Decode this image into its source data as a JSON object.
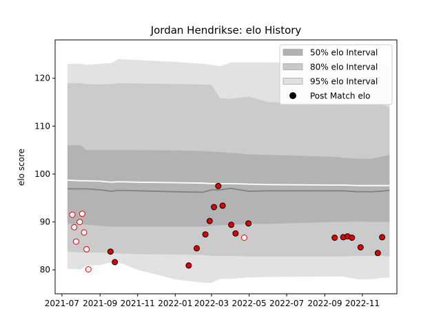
{
  "chart_data": {
    "type": "area",
    "title": "Jordan Hendrikse: elo History",
    "xlabel": "",
    "ylabel": "elo score",
    "xlim": [
      "2021-06-20",
      "2022-12-27"
    ],
    "ylim": [
      75,
      128
    ],
    "x_ticks": [
      "2021-07",
      "2021-09",
      "2021-11",
      "2022-01",
      "2022-03",
      "2022-05",
      "2022-07",
      "2022-09",
      "2022-11"
    ],
    "y_ticks": [
      80,
      90,
      100,
      110,
      120
    ],
    "grid": false,
    "legend_position": "top-right",
    "legend": [
      {
        "label": "50% elo Interval",
        "kind": "band",
        "color": "#b0b0b0"
      },
      {
        "label": "80% elo Interval",
        "kind": "band",
        "color": "#c8c8c8"
      },
      {
        "label": "95% elo Interval",
        "kind": "band",
        "color": "#e0e0e0"
      },
      {
        "label": "Post Match elo",
        "kind": "marker",
        "color": "#000000"
      }
    ],
    "colors": {
      "band_50": "#b3b3b3",
      "band_80": "#cbcbcb",
      "band_95": "#e2e2e2",
      "mean_line": "#808080",
      "expected_line": "#ffffff",
      "marker_fill": "#e00000",
      "marker_fill_unplayed": "#ffffff",
      "marker_edge_played": "#000000",
      "marker_edge_unplayed": "#e00000"
    },
    "bands": {
      "x": [
        "2021-07-10",
        "2021-08-01",
        "2021-08-10",
        "2021-09-01",
        "2021-09-20",
        "2021-10-01",
        "2021-11-01",
        "2022-01-01",
        "2022-02-15",
        "2022-03-01",
        "2022-03-15",
        "2022-04-01",
        "2022-05-01",
        "2022-06-01",
        "2022-09-15",
        "2022-10-01",
        "2022-10-25",
        "2022-11-15",
        "2022-12-01",
        "2022-12-15"
      ],
      "mean": [
        96.9,
        96.9,
        96.9,
        96.7,
        96.4,
        96.6,
        96.5,
        96.3,
        96.2,
        96.7,
        96.7,
        97.0,
        96.4,
        96.5,
        96.5,
        96.5,
        96.3,
        96.3,
        96.4,
        96.6
      ],
      "expected": [
        98.7,
        98.6,
        98.6,
        98.5,
        98.3,
        98.4,
        98.3,
        98.2,
        98.1,
        98.0,
        98.0,
        98.0,
        97.9,
        97.8,
        97.7,
        97.7,
        97.6,
        97.6,
        97.6,
        97.6
      ],
      "p50_high": [
        106.0,
        106.0,
        105.0,
        105.0,
        105.0,
        105.0,
        105.0,
        104.9,
        104.8,
        104.7,
        104.6,
        104.4,
        104.1,
        104.0,
        103.6,
        103.4,
        103.2,
        103.2,
        103.6,
        104.0
      ],
      "p50_low": [
        89.6,
        89.5,
        89.4,
        89.2,
        89.0,
        89.0,
        89.0,
        89.0,
        89.0,
        89.2,
        89.3,
        89.4,
        89.6,
        89.6,
        90.0,
        90.0,
        90.1,
        90.0,
        90.0,
        90.0
      ],
      "p80_high": [
        119.0,
        119.0,
        118.8,
        118.7,
        118.8,
        119.0,
        118.9,
        118.8,
        118.7,
        118.6,
        115.8,
        115.7,
        116.2,
        115.0,
        114.9,
        114.8,
        114.6,
        114.5,
        114.5,
        114.0
      ],
      "p80_low": [
        83.8,
        83.6,
        83.6,
        83.6,
        83.5,
        83.4,
        83.3,
        83.2,
        83.1,
        82.9,
        82.9,
        82.9,
        82.8,
        82.8,
        82.8,
        82.8,
        82.9,
        82.9,
        82.9,
        82.8
      ],
      "p95_high": [
        123.0,
        123.0,
        122.8,
        123.0,
        123.2,
        124.0,
        123.8,
        123.4,
        123.0,
        122.8,
        122.5,
        123.3,
        123.3,
        123.3,
        123.1,
        123.0,
        123.0,
        123.0,
        122.9,
        122.7
      ],
      "p95_low": [
        80.2,
        80.1,
        80.9,
        81.0,
        81.6,
        81.6,
        80.0,
        78.0,
        77.3,
        77.3,
        78.1,
        78.1,
        78.4,
        78.5,
        78.6,
        78.6,
        78.0,
        78.0,
        78.3,
        78.4
      ]
    },
    "points": [
      {
        "x": "2021-07-18",
        "y": 91.5,
        "played": false
      },
      {
        "x": "2021-07-21",
        "y": 88.9,
        "played": false
      },
      {
        "x": "2021-07-24",
        "y": 85.9,
        "played": false
      },
      {
        "x": "2021-07-30",
        "y": 90.0,
        "played": false
      },
      {
        "x": "2021-08-03",
        "y": 91.7,
        "played": false
      },
      {
        "x": "2021-08-06",
        "y": 87.8,
        "played": false
      },
      {
        "x": "2021-08-10",
        "y": 84.3,
        "played": false
      },
      {
        "x": "2021-08-13",
        "y": 80.1,
        "played": false
      },
      {
        "x": "2021-09-18",
        "y": 83.8,
        "played": true
      },
      {
        "x": "2021-09-25",
        "y": 81.6,
        "played": true
      },
      {
        "x": "2022-01-23",
        "y": 80.9,
        "played": true
      },
      {
        "x": "2022-02-05",
        "y": 84.5,
        "played": true
      },
      {
        "x": "2022-02-19",
        "y": 87.4,
        "played": true
      },
      {
        "x": "2022-02-26",
        "y": 90.2,
        "played": true
      },
      {
        "x": "2022-03-05",
        "y": 93.1,
        "played": true
      },
      {
        "x": "2022-03-12",
        "y": 97.5,
        "played": true
      },
      {
        "x": "2022-03-19",
        "y": 93.4,
        "played": true
      },
      {
        "x": "2022-04-02",
        "y": 89.4,
        "played": true
      },
      {
        "x": "2022-04-09",
        "y": 87.6,
        "played": true
      },
      {
        "x": "2022-04-23",
        "y": 86.7,
        "played": false
      },
      {
        "x": "2022-04-30",
        "y": 89.7,
        "played": true
      },
      {
        "x": "2022-09-17",
        "y": 86.7,
        "played": true
      },
      {
        "x": "2022-10-01",
        "y": 86.8,
        "played": true
      },
      {
        "x": "2022-10-08",
        "y": 87.0,
        "played": true
      },
      {
        "x": "2022-10-15",
        "y": 86.7,
        "played": true
      },
      {
        "x": "2022-10-29",
        "y": 84.7,
        "played": true
      },
      {
        "x": "2022-11-26",
        "y": 83.5,
        "played": true
      },
      {
        "x": "2022-12-03",
        "y": 86.8,
        "played": true
      }
    ]
  }
}
